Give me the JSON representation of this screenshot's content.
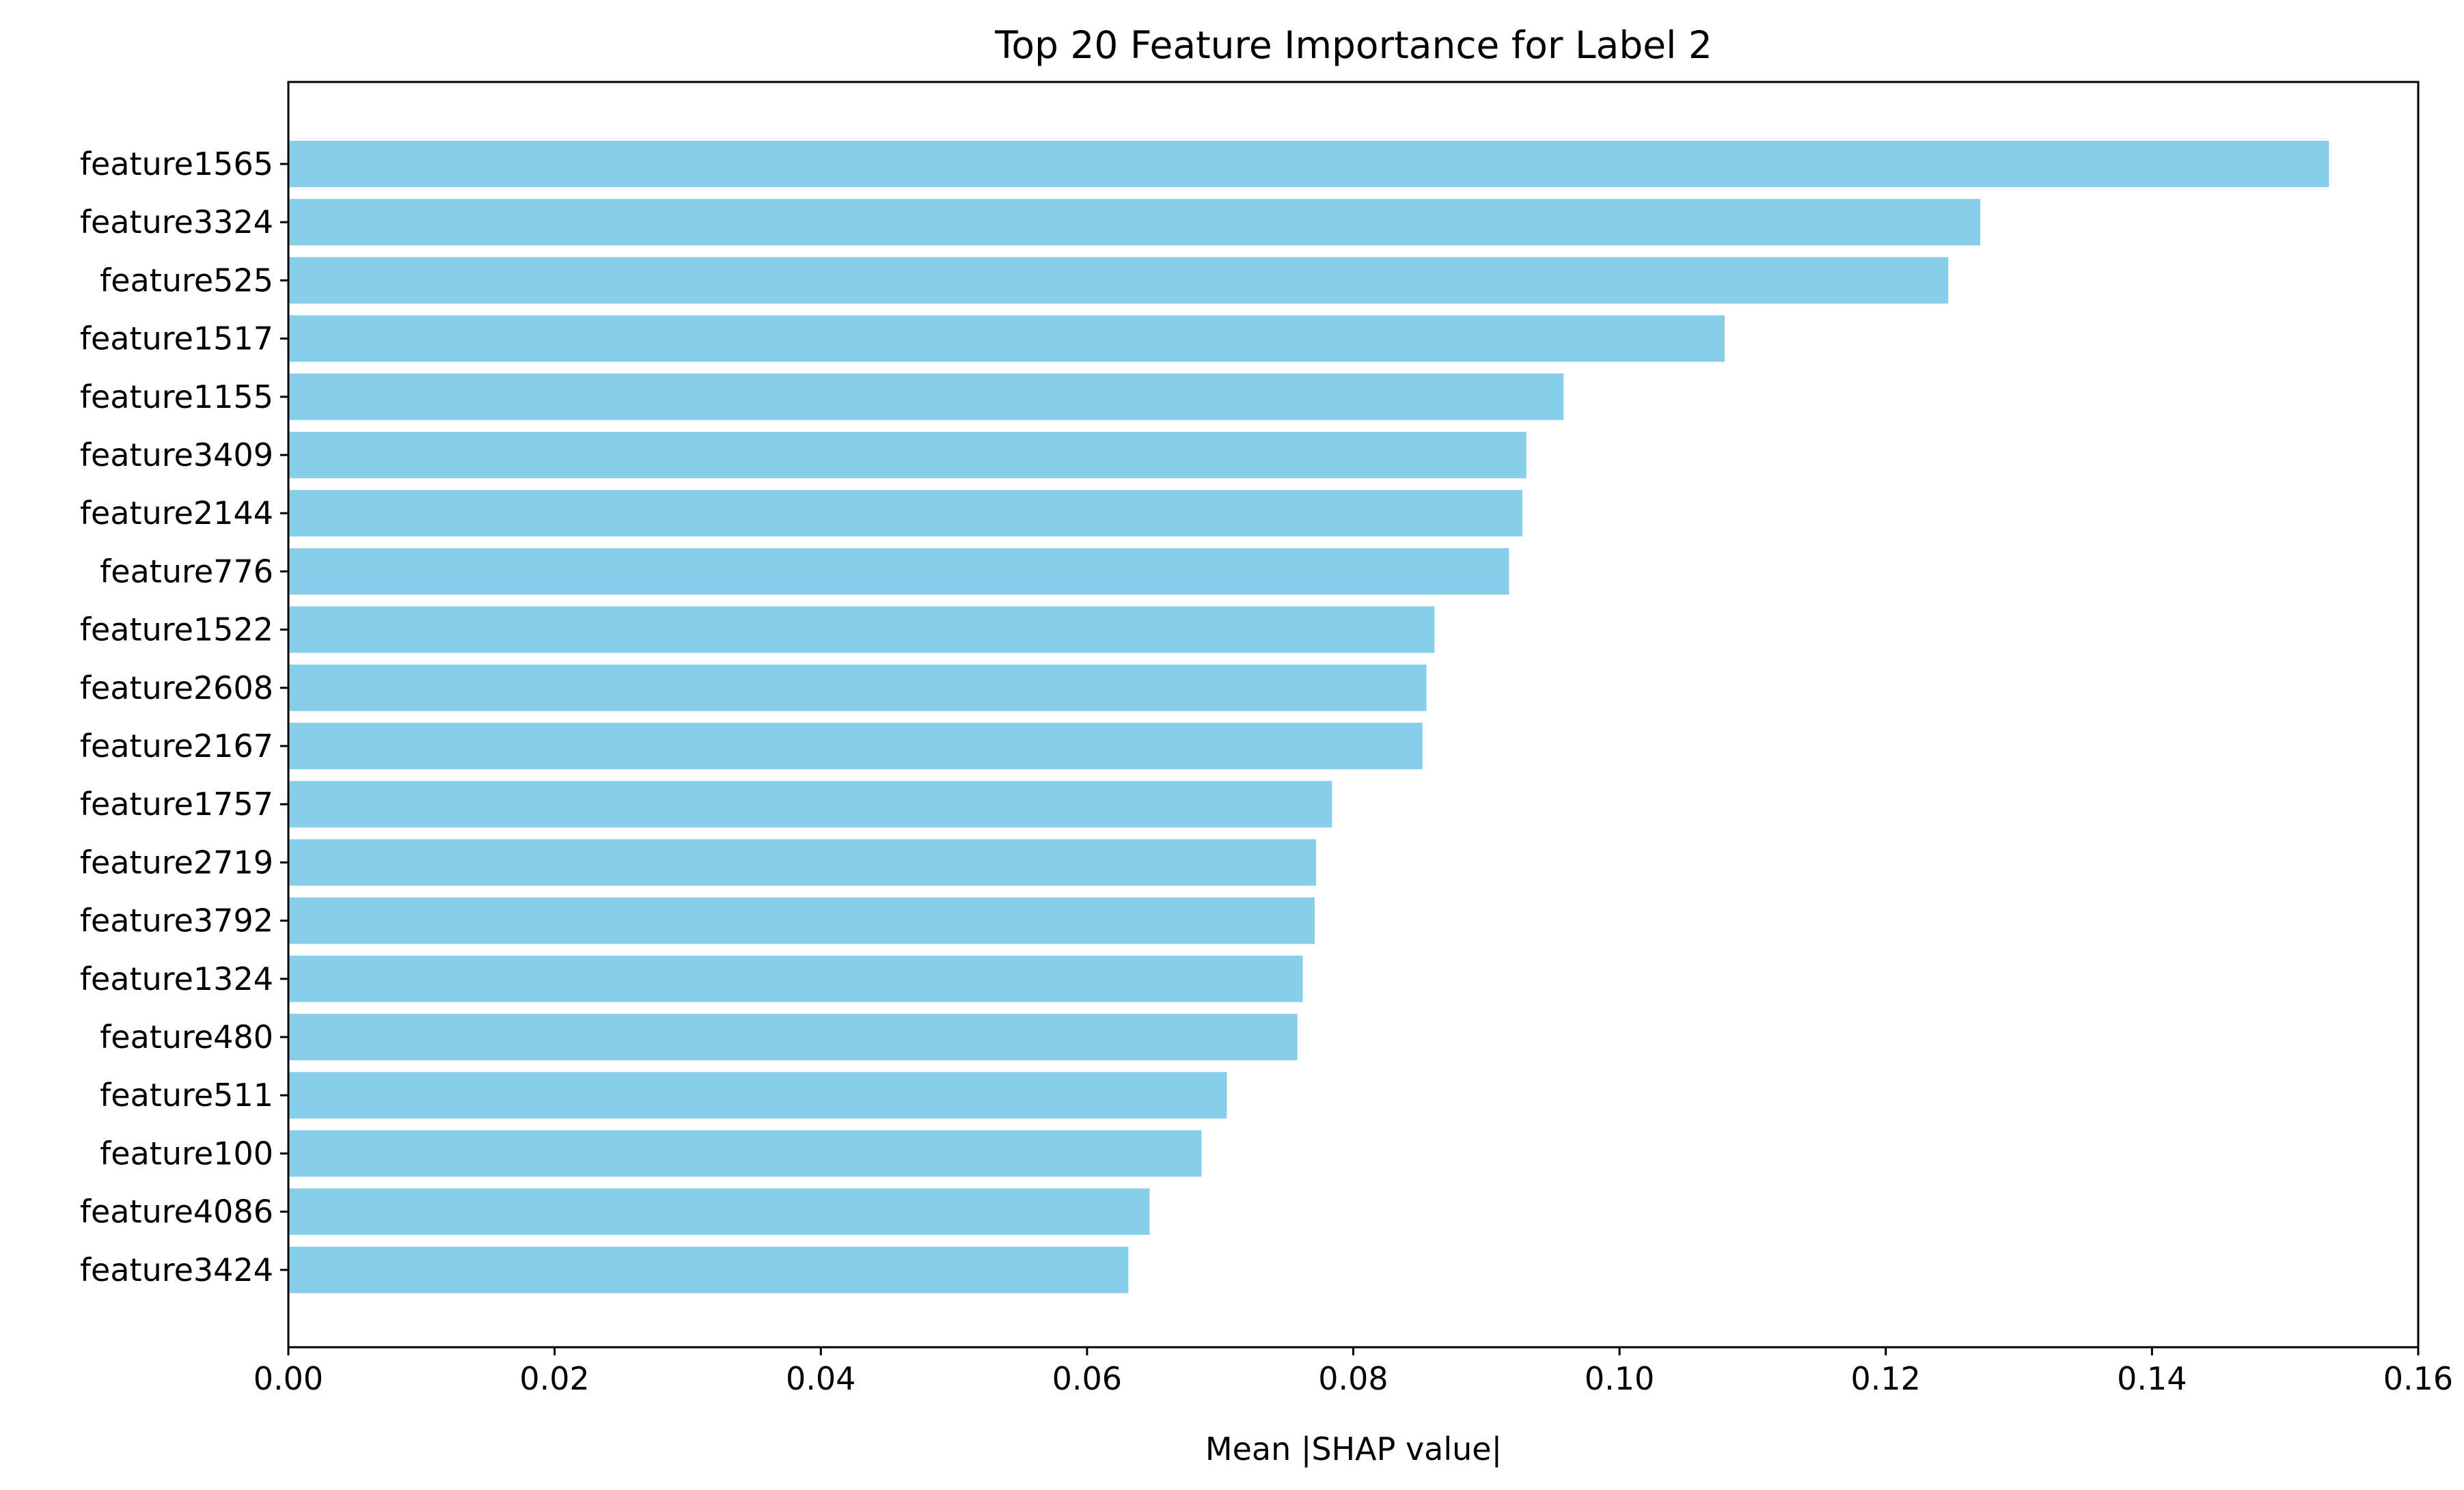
{
  "chart_data": {
    "type": "bar",
    "orientation": "horizontal",
    "title": "Top 20 Feature Importance for Label 2",
    "xlabel": "Mean |SHAP value|",
    "ylabel": "",
    "xlim": [
      0,
      0.16
    ],
    "xticks": [
      "0.00",
      "0.02",
      "0.04",
      "0.06",
      "0.08",
      "0.10",
      "0.12",
      "0.14",
      "0.16"
    ],
    "grid": false,
    "bar_color": "#87CEEB",
    "categories": [
      "feature1565",
      "feature3324",
      "feature525",
      "feature1517",
      "feature1155",
      "feature3409",
      "feature2144",
      "feature776",
      "feature1522",
      "feature2608",
      "feature2167",
      "feature1757",
      "feature2719",
      "feature3792",
      "feature1324",
      "feature480",
      "feature511",
      "feature100",
      "feature4086",
      "feature3424"
    ],
    "values": [
      0.1533,
      0.1271,
      0.1247,
      0.1079,
      0.0958,
      0.093,
      0.0927,
      0.0917,
      0.0861,
      0.0855,
      0.0852,
      0.0784,
      0.0772,
      0.0771,
      0.0762,
      0.0758,
      0.0705,
      0.0686,
      0.0647,
      0.0631
    ]
  }
}
